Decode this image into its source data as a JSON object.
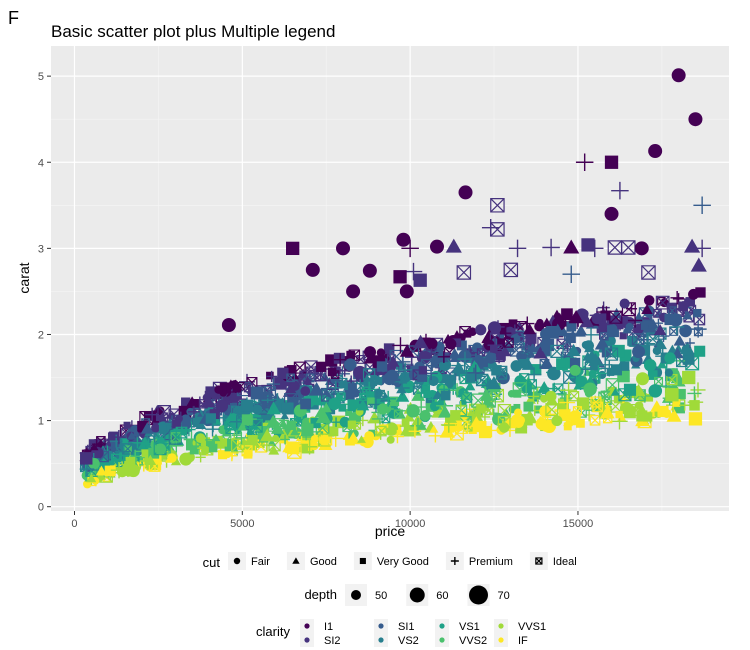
{
  "panel_tag": "F",
  "chart_data": {
    "type": "scatter",
    "title": "Basic scatter plot plus Multiple legend",
    "xlabel": "price",
    "ylabel": "carat",
    "xlim": [
      -700,
      19500
    ],
    "ylim": [
      -0.05,
      5.35
    ],
    "x_ticks": [
      0,
      5000,
      10000,
      15000
    ],
    "x_tick_labels": [
      "0",
      "5000",
      "10000",
      "15000"
    ],
    "y_ticks": [
      0,
      1,
      2,
      3,
      4,
      5
    ],
    "y_tick_labels": [
      "0",
      "1",
      "2",
      "3",
      "4",
      "5"
    ],
    "grid": true,
    "legend_position": "bottom",
    "background": "#EBEBEB",
    "legends": {
      "cut": {
        "title": "cut",
        "entries": [
          {
            "label": "Fair",
            "shape": "circle"
          },
          {
            "label": "Good",
            "shape": "triangle"
          },
          {
            "label": "Very Good",
            "shape": "square"
          },
          {
            "label": "Premium",
            "shape": "plus"
          },
          {
            "label": "Ideal",
            "shape": "boxed-x"
          }
        ]
      },
      "depth": {
        "title": "depth",
        "entries": [
          {
            "label": "50",
            "value": 50
          },
          {
            "label": "60",
            "value": 60
          },
          {
            "label": "70",
            "value": 70
          }
        ]
      },
      "clarity": {
        "title": "clarity",
        "entries": [
          {
            "label": "I1",
            "color": "#440154"
          },
          {
            "label": "SI2",
            "color": "#46337E"
          },
          {
            "label": "SI1",
            "color": "#365C8D"
          },
          {
            "label": "VS2",
            "color": "#277F8E"
          },
          {
            "label": "VS1",
            "color": "#1FA187"
          },
          {
            "label": "VVS2",
            "color": "#4AC16D"
          },
          {
            "label": "VVS1",
            "color": "#A0DA39"
          },
          {
            "label": "IF",
            "color": "#FDE725"
          }
        ]
      }
    },
    "highlighted_points": [
      {
        "price": 18000,
        "carat": 5.01,
        "cut": "Fair",
        "clarity": "I1"
      },
      {
        "price": 18500,
        "carat": 4.5,
        "cut": "Fair",
        "clarity": "I1"
      },
      {
        "price": 17300,
        "carat": 4.13,
        "cut": "Fair",
        "clarity": "I1"
      },
      {
        "price": 15200,
        "carat": 4.0,
        "cut": "Premium",
        "clarity": "I1"
      },
      {
        "price": 16000,
        "carat": 4.0,
        "cut": "Very Good",
        "clarity": "I1"
      },
      {
        "price": 16250,
        "carat": 3.67,
        "cut": "Premium",
        "clarity": "SI2"
      },
      {
        "price": 11650,
        "carat": 3.65,
        "cut": "Fair",
        "clarity": "I1"
      },
      {
        "price": 18700,
        "carat": 3.5,
        "cut": "Premium",
        "clarity": "SI1"
      },
      {
        "price": 16000,
        "carat": 3.4,
        "cut": "Fair",
        "clarity": "I1"
      },
      {
        "price": 12600,
        "carat": 3.5,
        "cut": "Ideal",
        "clarity": "SI2"
      },
      {
        "price": 12600,
        "carat": 3.22,
        "cut": "Ideal",
        "clarity": "SI2"
      },
      {
        "price": 12400,
        "carat": 3.24,
        "cut": "Premium",
        "clarity": "SI2"
      },
      {
        "price": 6500,
        "carat": 3.0,
        "cut": "Very Good",
        "clarity": "I1"
      },
      {
        "price": 8000,
        "carat": 3.0,
        "cut": "Fair",
        "clarity": "I1"
      },
      {
        "price": 9800,
        "carat": 3.1,
        "cut": "Fair",
        "clarity": "I1"
      },
      {
        "price": 10000,
        "carat": 3.0,
        "cut": "Premium",
        "clarity": "I1"
      },
      {
        "price": 10800,
        "carat": 3.02,
        "cut": "Fair",
        "clarity": "I1"
      },
      {
        "price": 11300,
        "carat": 3.02,
        "cut": "Good",
        "clarity": "SI2"
      },
      {
        "price": 13200,
        "carat": 3.0,
        "cut": "Premium",
        "clarity": "SI2"
      },
      {
        "price": 14200,
        "carat": 3.01,
        "cut": "Premium",
        "clarity": "SI2"
      },
      {
        "price": 14800,
        "carat": 3.01,
        "cut": "Good",
        "clarity": "I1"
      },
      {
        "price": 15300,
        "carat": 3.04,
        "cut": "Very Good",
        "clarity": "SI2"
      },
      {
        "price": 15500,
        "carat": 3.0,
        "cut": "Premium",
        "clarity": "SI2"
      },
      {
        "price": 16100,
        "carat": 3.01,
        "cut": "Ideal",
        "clarity": "SI2"
      },
      {
        "price": 16500,
        "carat": 3.01,
        "cut": "Ideal",
        "clarity": "SI2"
      },
      {
        "price": 16900,
        "carat": 3.0,
        "cut": "Fair",
        "clarity": "I1"
      },
      {
        "price": 18400,
        "carat": 3.02,
        "cut": "Good",
        "clarity": "SI2"
      },
      {
        "price": 18700,
        "carat": 3.0,
        "cut": "Premium",
        "clarity": "SI2"
      },
      {
        "price": 18600,
        "carat": 2.8,
        "cut": "Good",
        "clarity": "SI2"
      },
      {
        "price": 7100,
        "carat": 2.75,
        "cut": "Fair",
        "clarity": "I1"
      },
      {
        "price": 8800,
        "carat": 2.74,
        "cut": "Fair",
        "clarity": "I1"
      },
      {
        "price": 10300,
        "carat": 2.63,
        "cut": "Very Good",
        "clarity": "SI2"
      },
      {
        "price": 10100,
        "carat": 2.73,
        "cut": "Premium",
        "clarity": "SI2"
      },
      {
        "price": 11600,
        "carat": 2.72,
        "cut": "Ideal",
        "clarity": "SI2"
      },
      {
        "price": 13000,
        "carat": 2.75,
        "cut": "Ideal",
        "clarity": "SI2"
      },
      {
        "price": 8300,
        "carat": 2.5,
        "cut": "Fair",
        "clarity": "I1"
      },
      {
        "price": 9900,
        "carat": 2.5,
        "cut": "Fair",
        "clarity": "I1"
      },
      {
        "price": 9700,
        "carat": 2.67,
        "cut": "Very Good",
        "clarity": "I1"
      },
      {
        "price": 4600,
        "carat": 2.11,
        "cut": "Fair",
        "clarity": "I1"
      },
      {
        "price": 14800,
        "carat": 2.7,
        "cut": "Premium",
        "clarity": "SI1"
      },
      {
        "price": 17100,
        "carat": 2.72,
        "cut": "Ideal",
        "clarity": "SI2"
      },
      {
        "price": 18300,
        "carat": 1.5,
        "cut": "Very Good",
        "clarity": "VVS1"
      },
      {
        "price": 17800,
        "carat": 1.3,
        "cut": "Very Good",
        "clarity": "VVS1"
      },
      {
        "price": 18500,
        "carat": 1.02,
        "cut": "Very Good",
        "clarity": "IF"
      },
      {
        "price": 6550,
        "carat": 0.64,
        "cut": "Ideal",
        "clarity": "IF"
      }
    ]
  }
}
